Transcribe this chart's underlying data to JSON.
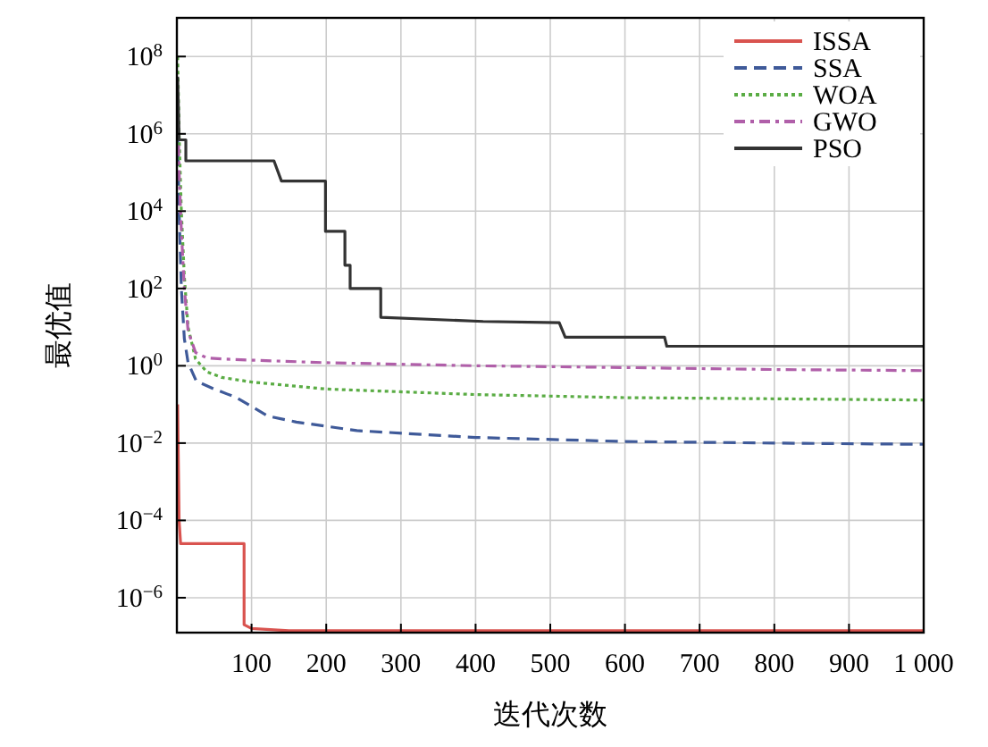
{
  "chart_data": {
    "type": "line",
    "xlabel": "迭代次数",
    "ylabel": "最优值",
    "log": "y",
    "grid": true,
    "legend": "top right",
    "xlim": [
      0,
      1000
    ],
    "xticks": [
      100,
      200,
      300,
      400,
      500,
      600,
      700,
      800,
      900,
      {
        "value": 1000,
        "label": "1 000"
      }
    ],
    "ylim": [
      1.25e-07,
      1000000000.0
    ],
    "yticks": [
      {
        "value": 1e-06,
        "label": "10$^{−6}$"
      },
      {
        "value": 0.0001,
        "label": "10$^{−4}$"
      },
      {
        "value": 0.01,
        "label": "10$^{−2}$"
      },
      {
        "value": 1,
        "label": "10$^{0}$"
      },
      {
        "value": 100,
        "label": "10$^{2}$"
      },
      {
        "value": 10000.0,
        "label": "10$^{4}$"
      },
      {
        "value": 1000000.0,
        "label": "10$^{6}$"
      },
      {
        "value": 100000000.0,
        "label": "10$^{8}$"
      }
    ],
    "series": [
      {
        "name": "ISSA",
        "color": "#d9534f",
        "line_style": "solid",
        "x": [
          1,
          3,
          5,
          90,
          90,
          100,
          150,
          1000
        ],
        "values": [
          0.1,
          0.0001,
          2.5e-05,
          2.5e-05,
          2e-07,
          1.6e-07,
          1.4e-07,
          1.4e-07
        ]
      },
      {
        "name": "SSA",
        "color": "#3f5a99",
        "line_style": "dashed",
        "x": [
          1,
          3,
          6,
          10,
          15,
          26,
          50,
          80,
          122,
          160,
          241,
          400,
          600,
          800,
          1000
        ],
        "values": [
          1000000.0,
          10000.0,
          100,
          5,
          1.2,
          0.4,
          0.25,
          0.15,
          0.05,
          0.035,
          0.021,
          0.014,
          0.011,
          0.01,
          0.0093
        ]
      },
      {
        "name": "WOA",
        "color": "#5aac44",
        "line_style": "dotted",
        "x": [
          1,
          3,
          6,
          10,
          15,
          25,
          40,
          60,
          100,
          200,
          400,
          600,
          800,
          1000
        ],
        "values": [
          100000000.0,
          1000000.0,
          10000.0,
          200,
          10,
          1.5,
          0.7,
          0.5,
          0.38,
          0.25,
          0.18,
          0.15,
          0.14,
          0.13
        ]
      },
      {
        "name": "GWO",
        "color": "#b05fa9",
        "line_style": "dashdot",
        "x": [
          1,
          3,
          6,
          10,
          15,
          25,
          40,
          60,
          100,
          200,
          400,
          600,
          800,
          1000
        ],
        "values": [
          10000000.0,
          100000.0,
          3000,
          100,
          8,
          2.2,
          1.6,
          1.5,
          1.4,
          1.2,
          1,
          0.9,
          0.8,
          0.75
        ]
      },
      {
        "name": "PSO",
        "color": "#333333",
        "line_style": "solid",
        "x": [
          1,
          2,
          3,
          12,
          12,
          130,
          140,
          199,
          199,
          225,
          225,
          232,
          232,
          273,
          273,
          410,
          512,
          520,
          653,
          656,
          1000
        ],
        "values": [
          30000000.0,
          5000000.0,
          700000.0,
          700000.0,
          200000.0,
          200000.0,
          60000.0,
          60000.0,
          3000,
          3000,
          400,
          400,
          100,
          100,
          18,
          14,
          13,
          5.5,
          5.5,
          3.2,
          3.2
        ]
      }
    ]
  }
}
